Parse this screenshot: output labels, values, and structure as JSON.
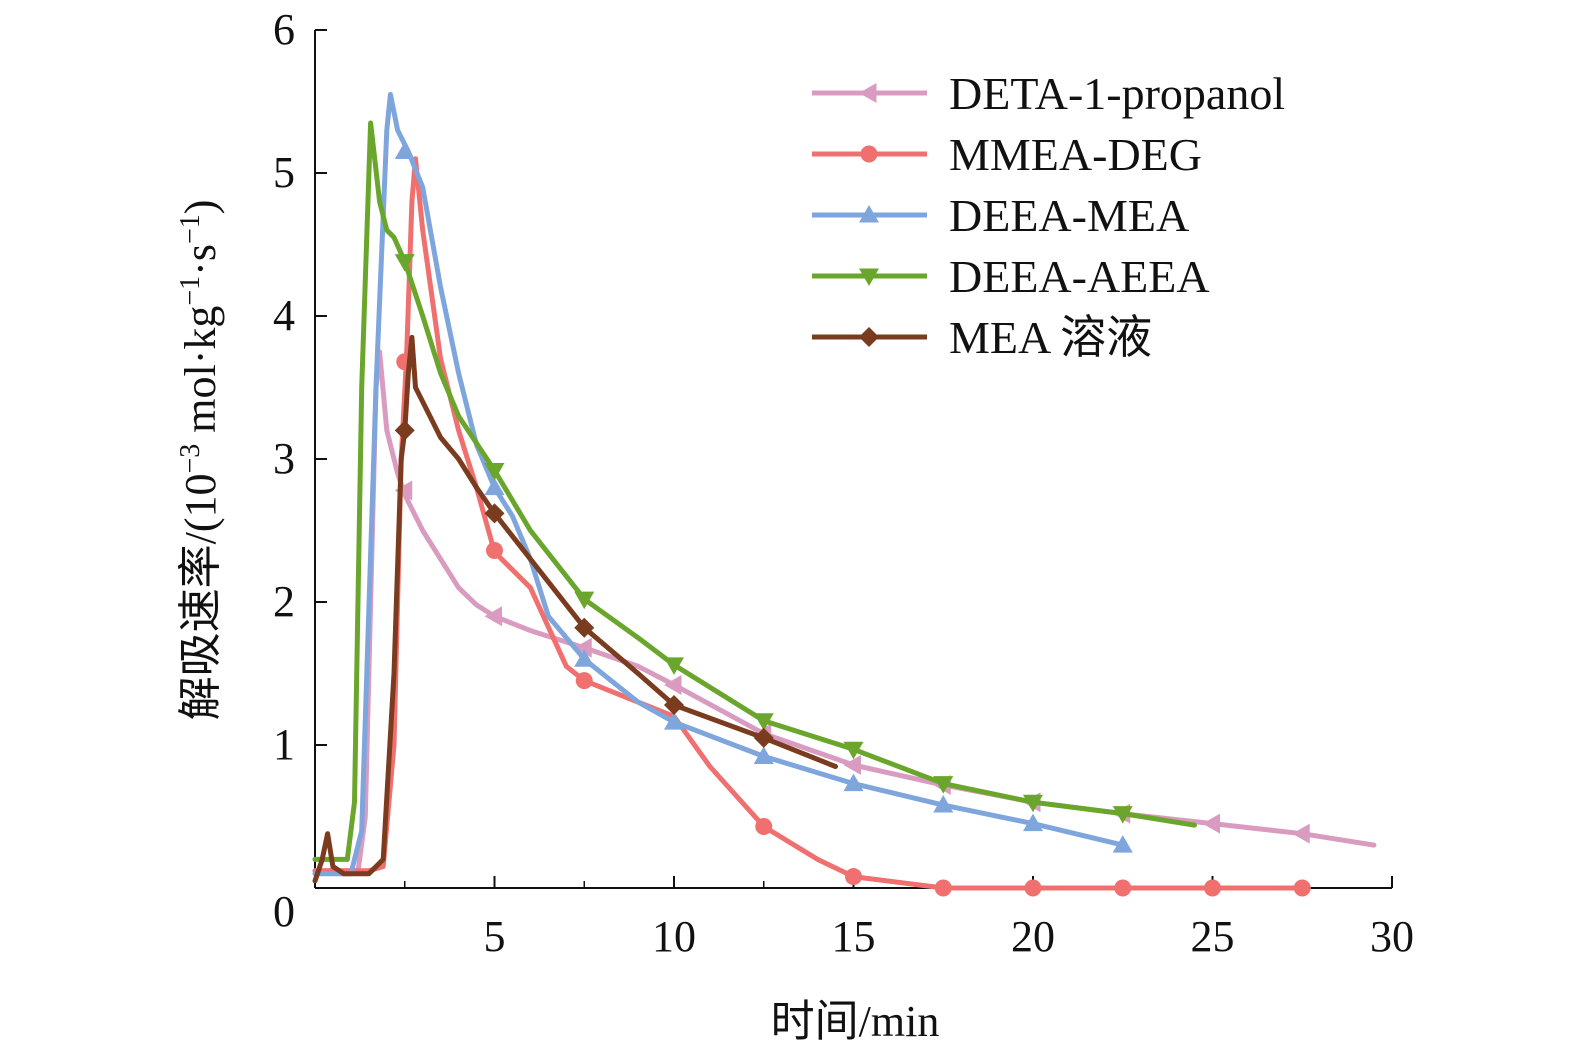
{
  "chart_data": {
    "type": "line",
    "xlabel": "时间/min",
    "ylabel_main": "解吸速率/(10",
    "ylabel_exp1": "−3",
    "ylabel_mid1": " mol·kg",
    "ylabel_exp2": "−1",
    "ylabel_mid2": "·s",
    "ylabel_exp3": "−1",
    "ylabel_end": ")",
    "xlim": [
      0,
      30
    ],
    "ylim": [
      0,
      6
    ],
    "x_ticks": [
      "5",
      "10",
      "15",
      "20",
      "25",
      "30"
    ],
    "x_tick_values": [
      5,
      10,
      15,
      20,
      25,
      30
    ],
    "y_ticks": [
      "1",
      "2",
      "3",
      "4",
      "5",
      "6"
    ],
    "y_tick_values": [
      1,
      2,
      3,
      4,
      5,
      6
    ],
    "origin_label": "0",
    "legend_position": "top-right",
    "series": [
      {
        "name": "DETA-1-propanol",
        "color": "#d99cc0",
        "marker": "triangle-left",
        "points": [
          [
            0,
            0.12
          ],
          [
            1.2,
            0.12
          ],
          [
            1.4,
            0.5
          ],
          [
            1.7,
            3.5
          ],
          [
            1.8,
            3.75
          ],
          [
            2.0,
            3.2
          ],
          [
            2.3,
            2.9
          ],
          [
            2.5,
            2.75
          ],
          [
            3.0,
            2.5
          ],
          [
            3.5,
            2.3
          ],
          [
            4.0,
            2.1
          ],
          [
            4.5,
            1.98
          ],
          [
            5.0,
            1.9
          ],
          [
            6.0,
            1.8
          ],
          [
            7.5,
            1.68
          ],
          [
            9.0,
            1.55
          ],
          [
            10.0,
            1.42
          ],
          [
            12.5,
            1.08
          ],
          [
            15.0,
            0.86
          ],
          [
            17.5,
            0.72
          ],
          [
            20.0,
            0.6
          ],
          [
            22.5,
            0.52
          ],
          [
            25.0,
            0.45
          ],
          [
            27.5,
            0.38
          ],
          [
            29.5,
            0.3
          ]
        ],
        "markers_at": [
          [
            2.5,
            2.78
          ],
          [
            5.0,
            1.9
          ],
          [
            7.5,
            1.68
          ],
          [
            10.0,
            1.42
          ],
          [
            12.5,
            1.08
          ],
          [
            15.0,
            0.86
          ],
          [
            17.5,
            0.72
          ],
          [
            20.0,
            0.6
          ],
          [
            22.5,
            0.52
          ],
          [
            25.0,
            0.45
          ],
          [
            27.5,
            0.38
          ]
        ]
      },
      {
        "name": "MMEA-DEG",
        "color": "#f07070",
        "marker": "circle",
        "points": [
          [
            0,
            0.12
          ],
          [
            1.5,
            0.12
          ],
          [
            1.9,
            0.15
          ],
          [
            2.2,
            1.0
          ],
          [
            2.4,
            3.0
          ],
          [
            2.55,
            3.7
          ],
          [
            2.7,
            4.8
          ],
          [
            2.8,
            5.1
          ],
          [
            3.0,
            4.6
          ],
          [
            3.5,
            3.7
          ],
          [
            4.0,
            3.2
          ],
          [
            4.5,
            2.8
          ],
          [
            5.0,
            2.35
          ],
          [
            6.0,
            2.1
          ],
          [
            7.0,
            1.55
          ],
          [
            7.5,
            1.45
          ],
          [
            9.0,
            1.3
          ],
          [
            10.0,
            1.2
          ],
          [
            11.0,
            0.85
          ],
          [
            12.5,
            0.43
          ],
          [
            14.0,
            0.2
          ],
          [
            15.0,
            0.08
          ],
          [
            17.5,
            0.0
          ],
          [
            20.0,
            0.0
          ],
          [
            22.5,
            0.0
          ],
          [
            25.0,
            0.0
          ],
          [
            27.5,
            0.0
          ]
        ],
        "markers_at": [
          [
            2.5,
            3.68
          ],
          [
            5.0,
            2.36
          ],
          [
            7.5,
            1.45
          ],
          [
            12.5,
            0.43
          ],
          [
            15.0,
            0.08
          ],
          [
            17.5,
            0.0
          ],
          [
            20.0,
            0.0
          ],
          [
            22.5,
            0.0
          ],
          [
            25.0,
            0.0
          ],
          [
            27.5,
            0.0
          ]
        ]
      },
      {
        "name": "DEEA-MEA",
        "color": "#7ea6dc",
        "marker": "triangle-up",
        "points": [
          [
            0,
            0.1
          ],
          [
            1.0,
            0.1
          ],
          [
            1.3,
            0.4
          ],
          [
            1.7,
            3.5
          ],
          [
            2.0,
            5.3
          ],
          [
            2.1,
            5.55
          ],
          [
            2.3,
            5.3
          ],
          [
            2.6,
            5.15
          ],
          [
            3.0,
            4.9
          ],
          [
            3.5,
            4.2
          ],
          [
            4.0,
            3.6
          ],
          [
            4.5,
            3.1
          ],
          [
            5.0,
            2.8
          ],
          [
            5.5,
            2.6
          ],
          [
            6.0,
            2.3
          ],
          [
            6.5,
            1.9
          ],
          [
            7.5,
            1.6
          ],
          [
            9.0,
            1.3
          ],
          [
            10.0,
            1.16
          ],
          [
            12.5,
            0.92
          ],
          [
            15.0,
            0.73
          ],
          [
            17.5,
            0.58
          ],
          [
            20.0,
            0.45
          ],
          [
            22.5,
            0.3
          ]
        ],
        "markers_at": [
          [
            2.5,
            5.15
          ],
          [
            5.0,
            2.8
          ],
          [
            7.5,
            1.6
          ],
          [
            10.0,
            1.16
          ],
          [
            12.5,
            0.92
          ],
          [
            15.0,
            0.73
          ],
          [
            17.5,
            0.58
          ],
          [
            20.0,
            0.45
          ],
          [
            22.5,
            0.3
          ]
        ]
      },
      {
        "name": "DEEA-AEEA",
        "color": "#6aa62c",
        "marker": "triangle-down",
        "points": [
          [
            0,
            0.2
          ],
          [
            0.9,
            0.2
          ],
          [
            1.1,
            0.6
          ],
          [
            1.3,
            3.5
          ],
          [
            1.55,
            5.35
          ],
          [
            1.8,
            4.8
          ],
          [
            2.0,
            4.6
          ],
          [
            2.2,
            4.55
          ],
          [
            2.5,
            4.38
          ],
          [
            3.0,
            4.0
          ],
          [
            3.5,
            3.6
          ],
          [
            4.0,
            3.3
          ],
          [
            5.0,
            2.92
          ],
          [
            6.0,
            2.5
          ],
          [
            7.5,
            2.02
          ],
          [
            9.0,
            1.75
          ],
          [
            10.0,
            1.56
          ],
          [
            12.5,
            1.17
          ],
          [
            15.0,
            0.97
          ],
          [
            17.5,
            0.73
          ],
          [
            20.0,
            0.6
          ],
          [
            22.5,
            0.52
          ],
          [
            24.5,
            0.44
          ]
        ],
        "markers_at": [
          [
            2.5,
            4.38
          ],
          [
            5.0,
            2.92
          ],
          [
            7.5,
            2.02
          ],
          [
            10.0,
            1.56
          ],
          [
            12.5,
            1.17
          ],
          [
            15.0,
            0.97
          ],
          [
            17.5,
            0.73
          ],
          [
            20.0,
            0.6
          ],
          [
            22.5,
            0.52
          ]
        ]
      },
      {
        "name": "MEA 溶液",
        "color": "#7a3b1e",
        "marker": "diamond",
        "points": [
          [
            0,
            0.05
          ],
          [
            0.2,
            0.2
          ],
          [
            0.35,
            0.38
          ],
          [
            0.5,
            0.15
          ],
          [
            0.8,
            0.1
          ],
          [
            1.5,
            0.1
          ],
          [
            1.9,
            0.2
          ],
          [
            2.2,
            1.5
          ],
          [
            2.4,
            3.0
          ],
          [
            2.5,
            3.2
          ],
          [
            2.6,
            3.6
          ],
          [
            2.7,
            3.85
          ],
          [
            2.8,
            3.5
          ],
          [
            3.0,
            3.4
          ],
          [
            3.5,
            3.15
          ],
          [
            4.0,
            3.0
          ],
          [
            4.5,
            2.8
          ],
          [
            5.0,
            2.62
          ],
          [
            6.0,
            2.3
          ],
          [
            7.5,
            1.82
          ],
          [
            9.0,
            1.5
          ],
          [
            10.0,
            1.28
          ],
          [
            12.5,
            1.05
          ],
          [
            14.5,
            0.85
          ]
        ],
        "markers_at": [
          [
            2.5,
            3.2
          ],
          [
            5.0,
            2.62
          ],
          [
            7.5,
            1.82
          ],
          [
            10.0,
            1.28
          ],
          [
            12.5,
            1.05
          ]
        ]
      }
    ]
  }
}
